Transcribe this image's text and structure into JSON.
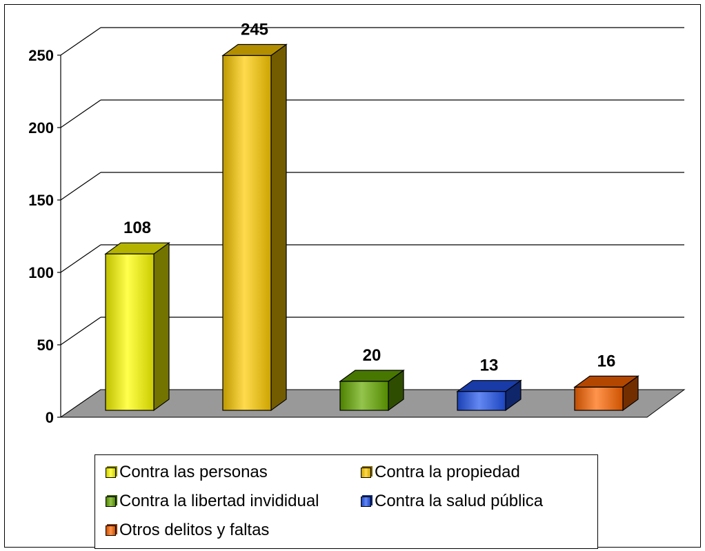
{
  "chart_data": {
    "type": "bar",
    "categories": [
      "Contra las personas",
      "Contra la propiedad",
      "Contra la libertad invididual",
      "Contra la salud pública",
      "Otros delitos y faltas"
    ],
    "values": [
      108,
      245,
      20,
      13,
      16
    ],
    "colors": [
      "#ffff00",
      "#ffcc00",
      "#66aa00",
      "#2255ee",
      "#ff6600"
    ],
    "ylim": [
      0,
      250
    ],
    "yticks": [
      0,
      50,
      100,
      150,
      200,
      250
    ],
    "grid": true,
    "legend_position": "bottom",
    "floor_color": "#999999"
  }
}
